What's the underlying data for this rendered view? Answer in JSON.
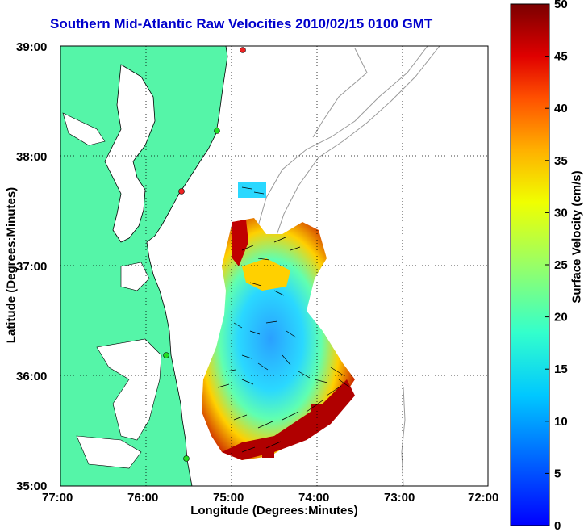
{
  "title": "Southern Mid-Atlantic Raw Velocities 2010/02/15 0100 GMT",
  "xlabel": "Longitude (Degrees:Minutes)",
  "ylabel": "Latitude (Degrees:Minutes)",
  "colorbar": {
    "label": "Surface Velocity (cm/s)",
    "ticks": [
      "0",
      "5",
      "10",
      "15",
      "20",
      "25",
      "30",
      "35",
      "40",
      "45",
      "50"
    ],
    "min": 0,
    "max": 50,
    "colormap": "jet"
  },
  "axes": {
    "x_ticks": [
      "77:00",
      "76:00",
      "75:00",
      "74:00",
      "73:00",
      "72:00"
    ],
    "y_ticks": [
      "39:00",
      "38:00",
      "37:00",
      "36:00",
      "35:00"
    ],
    "grid": true
  },
  "colors": {
    "land": "#55f5a8",
    "coast": "#000000",
    "bathymetry": "#9a9a9a",
    "title": "#0000cc",
    "station_green": "#22dd22",
    "station_red": "#ee2222"
  }
}
